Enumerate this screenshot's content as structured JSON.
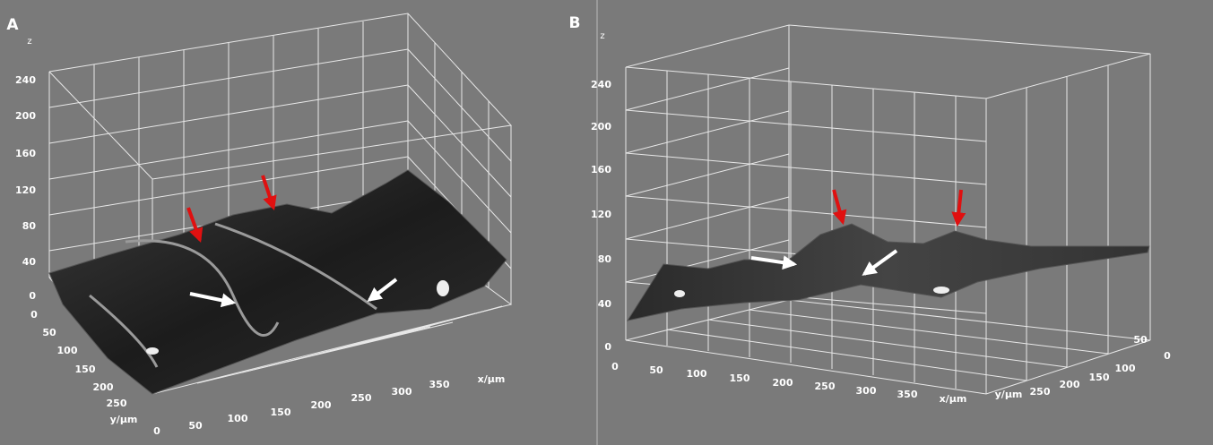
{
  "panels": [
    {
      "label": "A",
      "z_label": "z",
      "z_ticks": [
        "240",
        "200",
        "160",
        "120",
        "80",
        "40",
        "0"
      ],
      "y_ticks": [
        "0",
        "50",
        "100",
        "150",
        "200",
        "250"
      ],
      "y_label": "y/µm",
      "x_ticks": [
        "0",
        "50",
        "100",
        "150",
        "200",
        "250",
        "300",
        "350"
      ],
      "x_label": "x/µm"
    },
    {
      "label": "B",
      "z_label": "z",
      "z_ticks": [
        "240",
        "200",
        "160",
        "120",
        "80",
        "40",
        "0"
      ],
      "x_ticks": [
        "0",
        "50",
        "100",
        "150",
        "200",
        "250",
        "300",
        "350"
      ],
      "x_label": "x/µm",
      "y_ticks": [
        "250",
        "200",
        "150",
        "100",
        "50",
        "0"
      ],
      "y_label": "y/µm"
    }
  ]
}
